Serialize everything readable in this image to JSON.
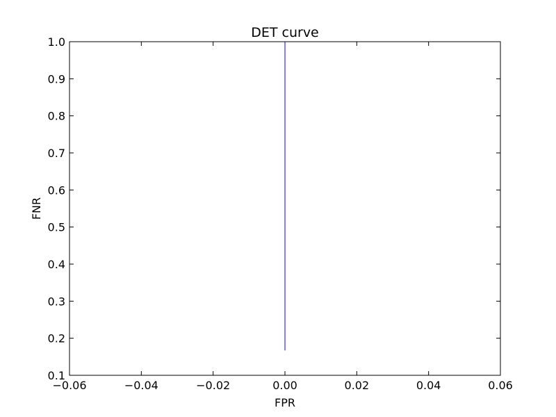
{
  "chart_data": {
    "type": "line",
    "title": "DET curve",
    "xlabel": "FPR",
    "ylabel": "FNR",
    "xlim": [
      -0.06,
      0.06
    ],
    "ylim": [
      0.1,
      1.0
    ],
    "x_ticks": [
      "−0.06",
      "−0.04",
      "−0.02",
      "0.00",
      "0.02",
      "0.04",
      "0.06"
    ],
    "x_tick_values": [
      -0.06,
      -0.04,
      -0.02,
      0.0,
      0.02,
      0.04,
      0.06
    ],
    "y_ticks": [
      "0.1",
      "0.2",
      "0.3",
      "0.4",
      "0.5",
      "0.6",
      "0.7",
      "0.8",
      "0.9",
      "1.0"
    ],
    "y_tick_values": [
      0.1,
      0.2,
      0.3,
      0.4,
      0.5,
      0.6,
      0.7,
      0.8,
      0.9,
      1.0
    ],
    "grid": false,
    "series": [
      {
        "color": "#0000ff",
        "x": [
          0.0,
          0.0
        ],
        "y": [
          0.167,
          1.0
        ]
      }
    ]
  }
}
